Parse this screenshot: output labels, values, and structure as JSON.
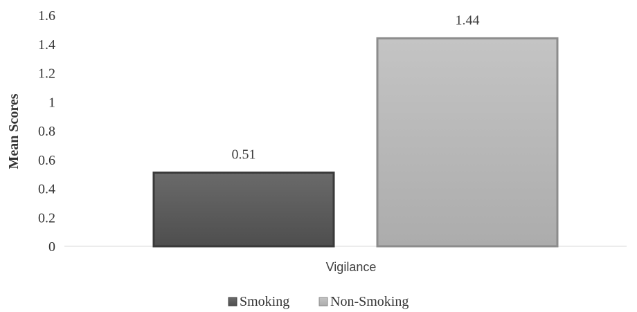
{
  "chart_data": {
    "type": "bar",
    "categories": [
      "Vigilance"
    ],
    "series": [
      {
        "name": "Smoking",
        "values": [
          0.51
        ],
        "color": "#5a5a5a"
      },
      {
        "name": "Non-Smoking",
        "values": [
          1.44
        ],
        "color": "#b5b5b5"
      }
    ],
    "ylabel": "Mean Scores",
    "xlabel": "",
    "ylim": [
      0,
      1.6
    ],
    "yticks": [
      "0",
      "0.2",
      "0.4",
      "0.6",
      "0.8",
      "1",
      "1.2",
      "1.4",
      "1.6"
    ],
    "data_labels": [
      "0.51",
      "1.44"
    ],
    "legend_position": "bottom",
    "grid": false
  }
}
